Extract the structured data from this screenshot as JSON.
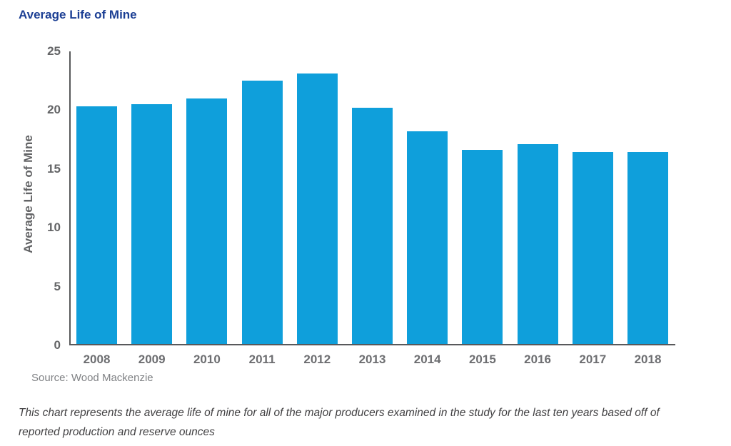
{
  "title": "Average Life of Mine",
  "source": "Source: Wood Mackenzie",
  "caption": {
    "line1": "This chart represents the average life of mine for all of the major producers examined in the study for the last ten years based off of",
    "line2": "reported production and reserve ounces"
  },
  "colors": {
    "title": "#1C3F94",
    "bar": "#0F9FDB",
    "axis": "#58595B",
    "tick_text": "#636466",
    "source_text": "#808285",
    "caption_text": "#414042"
  },
  "chart_data": {
    "type": "bar",
    "title": "Average Life of Mine",
    "categories": [
      "2008",
      "2009",
      "2010",
      "2011",
      "2012",
      "2013",
      "2014",
      "2015",
      "2016",
      "2017",
      "2018"
    ],
    "values": [
      20.2,
      20.4,
      20.9,
      22.4,
      23.0,
      20.1,
      18.1,
      16.5,
      17.0,
      16.3,
      16.3
    ],
    "xlabel": "",
    "ylabel": "Average Life of Mine",
    "ylim": [
      0,
      25
    ],
    "yticks": [
      0,
      5,
      10,
      15,
      20,
      25
    ],
    "grid": false,
    "legend": "none",
    "bar_color": "#0F9FDB",
    "axis_color": "#58595B"
  }
}
